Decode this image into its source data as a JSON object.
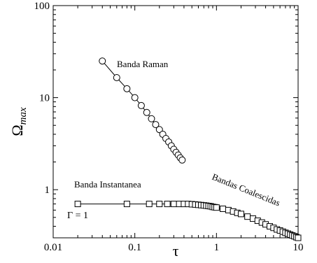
{
  "chart_data": {
    "type": "scatter",
    "title": "",
    "xlabel": "τ",
    "ylabel": "Ω",
    "ylabel_sub": "max",
    "xscale": "log",
    "yscale": "log",
    "xlim": [
      0.01,
      10
    ],
    "ylim": [
      0.3,
      100
    ],
    "xticks": [
      {
        "value": 0.01,
        "label": "0.01"
      },
      {
        "value": 0.1,
        "label": "0.1"
      },
      {
        "value": 1,
        "label": "1"
      },
      {
        "value": 10,
        "label": "10"
      }
    ],
    "yticks": [
      {
        "value": 1,
        "label": "1"
      },
      {
        "value": 10,
        "label": "10"
      },
      {
        "value": 100,
        "label": "100"
      }
    ],
    "grid": false,
    "legend": "none",
    "annotations": {
      "raman": "Banda Raman",
      "instantanea": "Banda Instantanea",
      "coalescidas": "Bandas Coalescidas",
      "gamma": "Γ = 1"
    },
    "series": [
      {
        "marker": "circle",
        "x": [
          0.04,
          0.06,
          0.08,
          0.1,
          0.12,
          0.14,
          0.16,
          0.18,
          0.2,
          0.22,
          0.24,
          0.26,
          0.28,
          0.3,
          0.32,
          0.34,
          0.36,
          0.38
        ],
        "y": [
          25,
          16.5,
          12.5,
          10,
          8.2,
          6.9,
          5.9,
          5.1,
          4.5,
          4.0,
          3.6,
          3.3,
          3.0,
          2.75,
          2.55,
          2.38,
          2.22,
          2.1
        ]
      },
      {
        "marker": "square",
        "x": [
          0.02,
          0.08,
          0.15,
          0.2,
          0.25,
          0.3,
          0.35,
          0.4,
          0.45,
          0.5,
          0.55,
          0.6,
          0.65,
          0.7,
          0.75,
          0.8,
          0.85,
          0.9,
          0.95,
          1.0,
          1.2,
          1.4,
          1.6,
          1.8,
          2.0,
          2.4,
          2.8,
          3.2,
          3.6,
          4.0,
          4.5,
          5.0,
          5.5,
          6.0,
          6.5,
          7.0,
          7.5,
          8.0,
          8.5,
          9.0,
          9.5,
          10.0
        ],
        "y": [
          0.7,
          0.7,
          0.7,
          0.7,
          0.7,
          0.7,
          0.7,
          0.7,
          0.7,
          0.695,
          0.69,
          0.685,
          0.68,
          0.675,
          0.67,
          0.665,
          0.66,
          0.65,
          0.645,
          0.64,
          0.62,
          0.6,
          0.58,
          0.56,
          0.545,
          0.51,
          0.485,
          0.46,
          0.44,
          0.42,
          0.4,
          0.385,
          0.37,
          0.36,
          0.35,
          0.34,
          0.333,
          0.325,
          0.318,
          0.312,
          0.305,
          0.3
        ]
      }
    ]
  }
}
